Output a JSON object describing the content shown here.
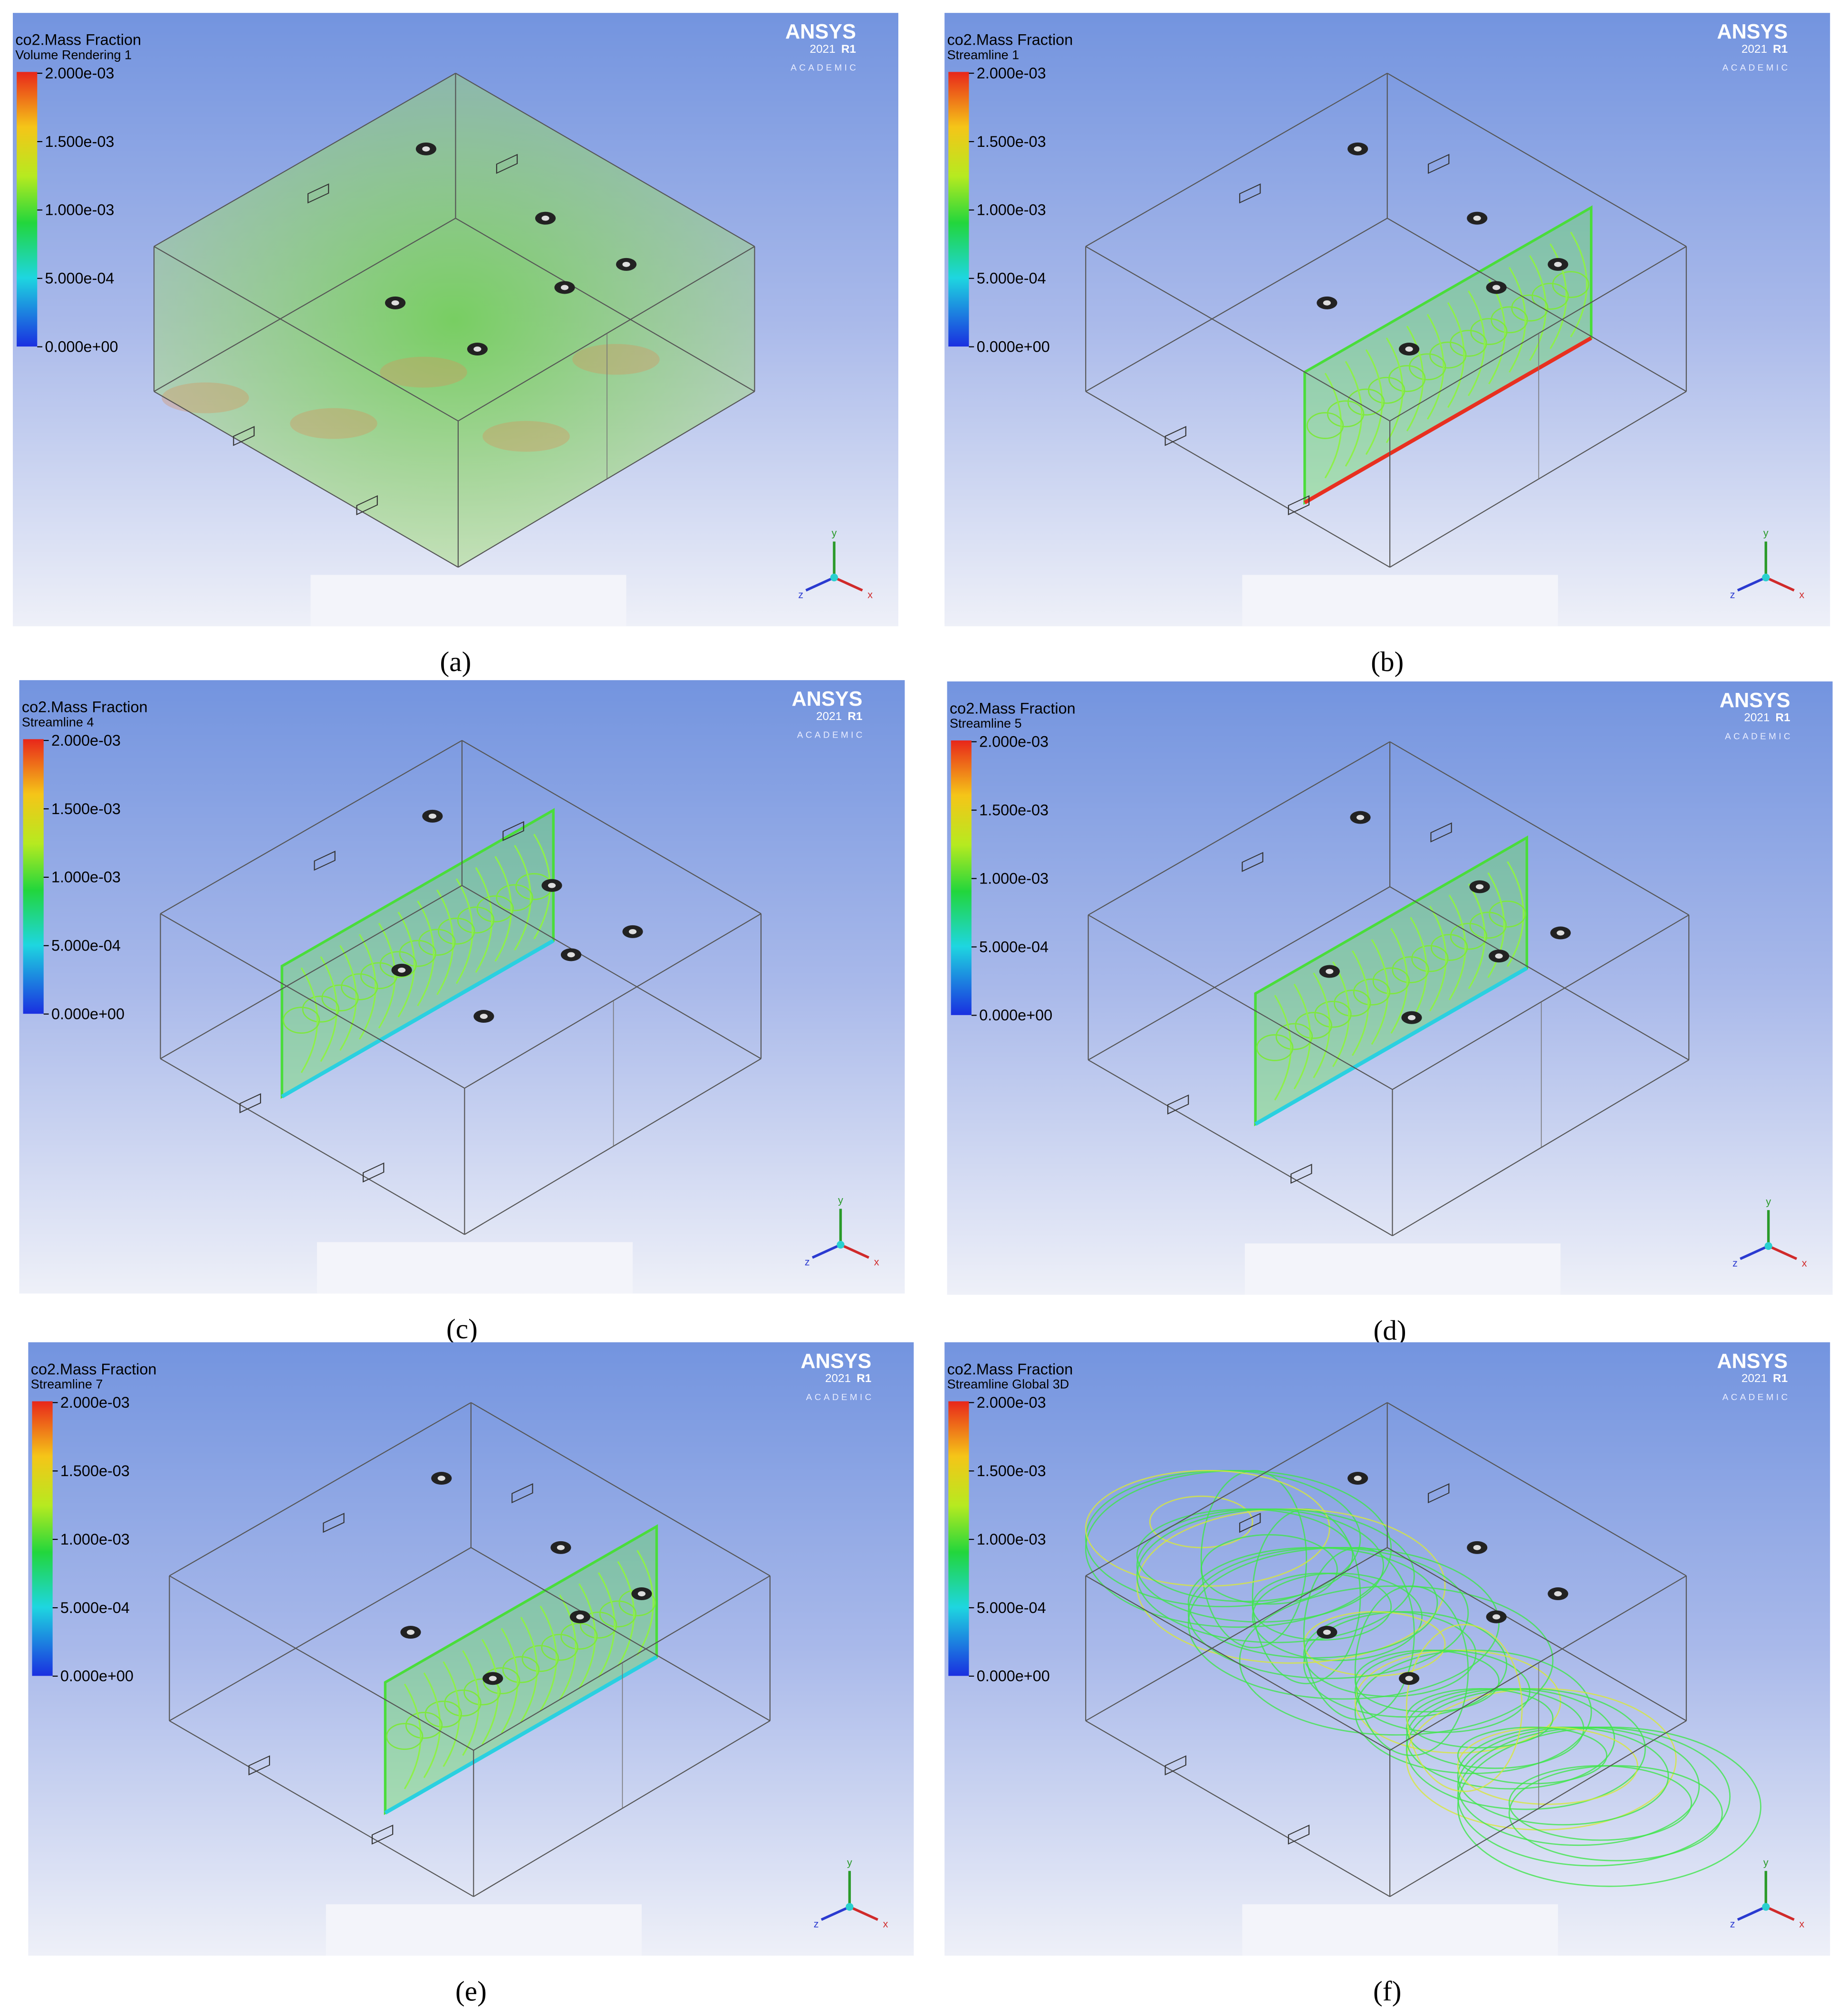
{
  "panels": [
    {
      "label": "(a)",
      "variable": "co2.Mass Fraction",
      "object": "Volume Rendering 1",
      "legend_ticks": [
        "2.000e-03",
        "1.500e-03",
        "1.000e-03",
        "5.000e-04",
        "0.000e+00"
      ],
      "brand": "ANSYS",
      "version": "2021",
      "release": "R1",
      "edition": "ACADEMIC",
      "axes": [
        "y",
        "z",
        "x"
      ]
    },
    {
      "label": "(b)",
      "variable": "co2.Mass Fraction",
      "object": "Streamline 1",
      "legend_ticks": [
        "2.000e-03",
        "1.500e-03",
        "1.000e-03",
        "5.000e-04",
        "0.000e+00"
      ],
      "brand": "ANSYS",
      "version": "2021",
      "release": "R1",
      "edition": "ACADEMIC",
      "axes": [
        "y",
        "z",
        "x"
      ]
    },
    {
      "label": "(c)",
      "variable": "co2.Mass Fraction",
      "object": "Streamline 4",
      "legend_ticks": [
        "2.000e-03",
        "1.500e-03",
        "1.000e-03",
        "5.000e-04",
        "0.000e+00"
      ],
      "brand": "ANSYS",
      "version": "2021",
      "release": "R1",
      "edition": "ACADEMIC",
      "axes": [
        "y",
        "z",
        "x"
      ]
    },
    {
      "label": "(d)",
      "variable": "co2.Mass Fraction",
      "object": "Streamline 5",
      "legend_ticks": [
        "2.000e-03",
        "1.500e-03",
        "1.000e-03",
        "5.000e-04",
        "0.000e+00"
      ],
      "brand": "ANSYS",
      "version": "2021",
      "release": "R1",
      "edition": "ACADEMIC",
      "axes": [
        "y",
        "z",
        "x"
      ]
    },
    {
      "label": "(e)",
      "variable": "co2.Mass Fraction",
      "object": "Streamline 7",
      "legend_ticks": [
        "2.000e-03",
        "1.500e-03",
        "1.000e-03",
        "5.000e-04",
        "0.000e+00"
      ],
      "brand": "ANSYS",
      "version": "2021",
      "release": "R1",
      "edition": "ACADEMIC",
      "axes": [
        "y",
        "z",
        "x"
      ]
    },
    {
      "label": "(f)",
      "variable": "co2.Mass Fraction",
      "object": "Streamline Global 3D",
      "legend_ticks": [
        "2.000e-03",
        "1.500e-03",
        "1.000e-03",
        "5.000e-04",
        "0.000e+00"
      ],
      "brand": "ANSYS",
      "version": "2021",
      "release": "R1",
      "edition": "ACADEMIC",
      "axes": [
        "y",
        "z",
        "x"
      ]
    }
  ]
}
